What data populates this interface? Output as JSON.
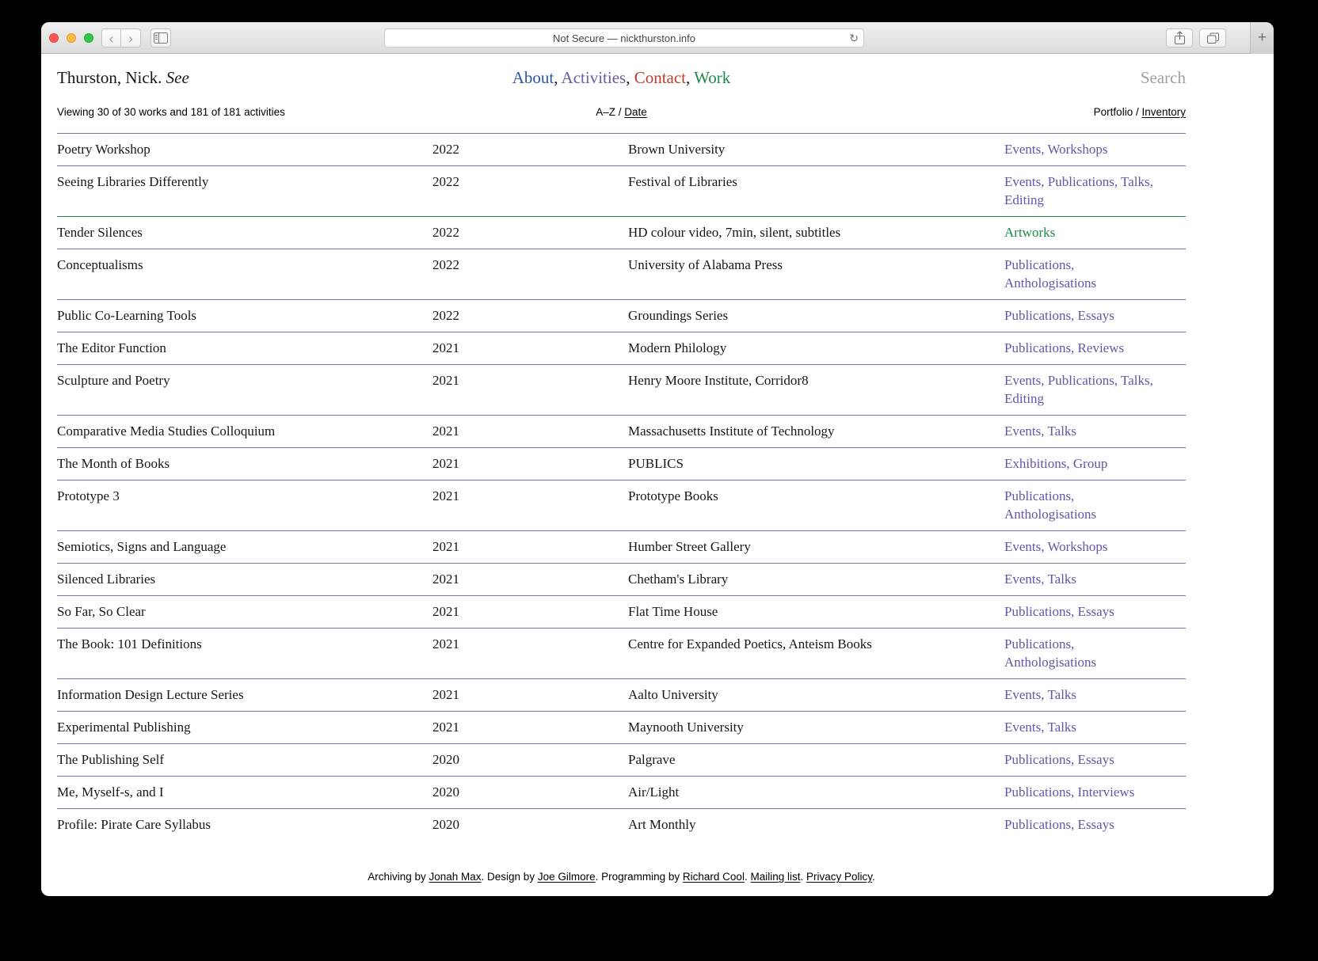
{
  "browser": {
    "url_text": "Not Secure — nickthurston.info",
    "back_glyph": "‹",
    "forward_glyph": "›",
    "reload_glyph": "↻",
    "new_tab_glyph": "+"
  },
  "header": {
    "title_main": "Thurston, Nick.",
    "title_italic": "See",
    "nav_separator": ", ",
    "nav_items": [
      {
        "label": "About",
        "color": "#2b55a4"
      },
      {
        "label": "Activities",
        "color": "#6c57aa"
      },
      {
        "label": "Contact",
        "color": "#bf3b2b"
      },
      {
        "label": "Work",
        "color": "#1b8a4c"
      }
    ],
    "search_label": "Search"
  },
  "subheader": {
    "viewing": "Viewing 30 of 30 works and 181 of 181 activities",
    "sort_az": "A–Z",
    "separator": " / ",
    "sort_date": "Date",
    "view_portfolio": "Portfolio",
    "view_inventory": "Inventory"
  },
  "table": {
    "colors": {
      "purple": {
        "text": "#6753a8",
        "border": "#7e6eb8"
      },
      "green": {
        "text": "#1e8a4a",
        "border": "#2c8a55"
      }
    },
    "rows": [
      {
        "title": "Poetry Workshop",
        "year": "2022",
        "venue": "Brown University",
        "categories": "Events, Workshops",
        "type": "purple"
      },
      {
        "title": "Seeing Libraries Differently",
        "year": "2022",
        "venue": "Festival of Libraries",
        "categories": "Events, Publications, Talks, Editing",
        "type": "purple"
      },
      {
        "title": "Tender Silences",
        "year": "2022",
        "venue": "HD colour video, 7min, silent, subtitles",
        "categories": "Artworks",
        "type": "green"
      },
      {
        "title": "Conceptualisms",
        "year": "2022",
        "venue": "University of Alabama Press",
        "categories": "Publications, Anthologisations",
        "type": "purple"
      },
      {
        "title": "Public Co-Learning Tools",
        "year": "2022",
        "venue": "Groundings Series",
        "categories": "Publications, Essays",
        "type": "purple"
      },
      {
        "title": "The Editor Function",
        "year": "2021",
        "venue": "Modern Philology",
        "categories": "Publications, Reviews",
        "type": "purple"
      },
      {
        "title": "Sculpture and Poetry",
        "year": "2021",
        "venue": "Henry Moore Institute, Corridor8",
        "categories": "Events, Publications, Talks, Editing",
        "type": "purple"
      },
      {
        "title": "Comparative Media Studies Colloquium",
        "year": "2021",
        "venue": "Massachusetts Institute of Technology",
        "categories": "Events, Talks",
        "type": "purple"
      },
      {
        "title": "The Month of Books",
        "year": "2021",
        "venue": "PUBLICS",
        "categories": "Exhibitions, Group",
        "type": "purple"
      },
      {
        "title": "Prototype 3",
        "year": "2021",
        "venue": "Prototype Books",
        "categories": "Publications, Anthologisations",
        "type": "purple"
      },
      {
        "title": "Semiotics, Signs and Language",
        "year": "2021",
        "venue": "Humber Street Gallery",
        "categories": "Events, Workshops",
        "type": "purple"
      },
      {
        "title": "Silenced Libraries",
        "year": "2021",
        "venue": "Chetham's Library",
        "categories": "Events, Talks",
        "type": "purple"
      },
      {
        "title": "So Far, So Clear",
        "year": "2021",
        "venue": "Flat Time House",
        "categories": "Publications, Essays",
        "type": "purple"
      },
      {
        "title": "The Book: 101 Definitions",
        "year": "2021",
        "venue": "Centre for Expanded Poetics, Anteism Books",
        "categories": "Publications, Anthologisations",
        "type": "purple"
      },
      {
        "title": "Information Design Lecture Series",
        "year": "2021",
        "venue": "Aalto University",
        "categories": "Events, Talks",
        "type": "purple"
      },
      {
        "title": "Experimental Publishing",
        "year": "2021",
        "venue": "Maynooth University",
        "categories": "Events, Talks",
        "type": "purple"
      },
      {
        "title": "The Publishing Self",
        "year": "2020",
        "venue": "Palgrave",
        "categories": "Publications, Essays",
        "type": "purple"
      },
      {
        "title": "Me, Myself-s, and I",
        "year": "2020",
        "venue": "Air/Light",
        "categories": "Publications, Interviews",
        "type": "purple"
      },
      {
        "title": "Profile: Pirate Care Syllabus",
        "year": "2020",
        "venue": "Art Monthly",
        "categories": "Publications, Essays",
        "type": "purple"
      }
    ]
  },
  "footer": {
    "segments": [
      {
        "text": "Archiving by ",
        "link": false
      },
      {
        "text": "Jonah Max",
        "link": true
      },
      {
        "text": ". Design by ",
        "link": false
      },
      {
        "text": "Joe Gilmore",
        "link": true
      },
      {
        "text": ". Programming by ",
        "link": false
      },
      {
        "text": "Richard Cool",
        "link": true
      },
      {
        "text": ". ",
        "link": false
      },
      {
        "text": "Mailing list",
        "link": true
      },
      {
        "text": ". ",
        "link": false
      },
      {
        "text": "Privacy Policy",
        "link": true
      },
      {
        "text": ".",
        "link": false
      }
    ]
  }
}
